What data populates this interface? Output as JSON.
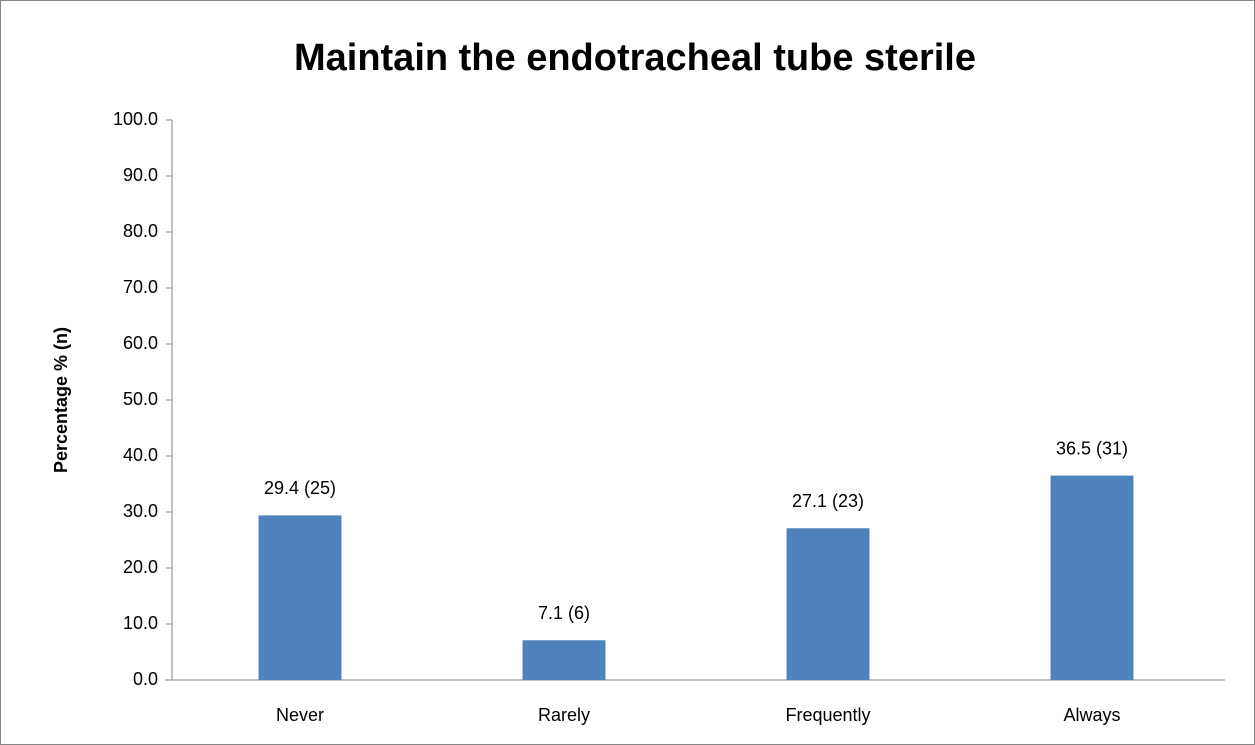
{
  "chart_data": {
    "type": "bar",
    "title": "Maintain the endotracheal tube sterile",
    "y_label": "Percentage % (n)",
    "categories": [
      "Never",
      "Rarely",
      "Frequently",
      "Always"
    ],
    "values": [
      29.4,
      7.1,
      27.1,
      36.5
    ],
    "value_labels": [
      "29.4 (25)",
      "7.1 (6)",
      "27.1 (23)",
      "36.5 (31)"
    ],
    "color": "#4f81bd",
    "ylim": [
      0,
      100
    ],
    "yticks": [
      {
        "value": 0,
        "label": "0.0"
      },
      {
        "value": 10,
        "label": "10.0"
      },
      {
        "value": 20,
        "label": "20.0"
      },
      {
        "value": 30,
        "label": "30.0"
      },
      {
        "value": 40,
        "label": "40.0"
      },
      {
        "value": 50,
        "label": "50.0"
      },
      {
        "value": 60,
        "label": "60.0"
      },
      {
        "value": 70,
        "label": "70.0"
      },
      {
        "value": 80,
        "label": "80.0"
      },
      {
        "value": 90,
        "label": "90.0"
      },
      {
        "value": 100,
        "label": "100.0"
      }
    ],
    "grid": false
  }
}
